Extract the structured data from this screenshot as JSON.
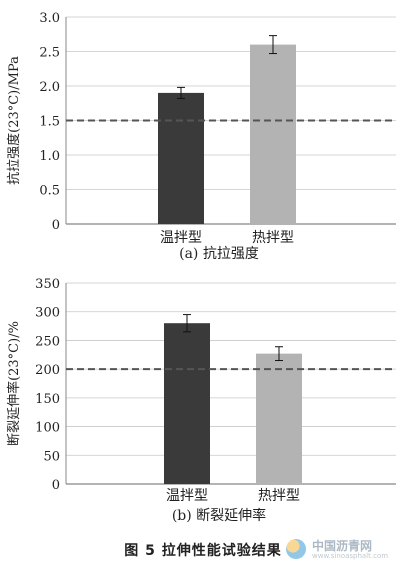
{
  "figure_caption": "图 5    拉伸性能试验结果",
  "watermark": {
    "name": "中国沥青网",
    "url": "www.sinoasphalt.com",
    "logo_icon": "asphalt-logo-icon"
  },
  "chart_data": [
    {
      "type": "bar",
      "caption": "(a) 抗拉强度",
      "categories": [
        "温拌型",
        "热拌型"
      ],
      "values": [
        1.9,
        2.6
      ],
      "error": [
        0.08,
        0.13
      ],
      "reference_line": 1.5,
      "ylabel": "抗拉强度(23°C)/MPa",
      "xlabel": "",
      "ylim": [
        0,
        3.0
      ],
      "yticks": [
        "0",
        "0.5",
        "1.0",
        "1.5",
        "2.0",
        "2.5",
        "3.0"
      ],
      "ytick_values": [
        0,
        0.5,
        1.0,
        1.5,
        2.0,
        2.5,
        3.0
      ],
      "grid": true,
      "colors": [
        "#3a3a3a",
        "#b3b3b3"
      ],
      "reference_color": "#555555"
    },
    {
      "type": "bar",
      "caption": "(b) 断裂延伸率",
      "categories": [
        "温拌型",
        "热拌型"
      ],
      "values": [
        280,
        227
      ],
      "error": [
        15,
        12
      ],
      "reference_line": 200,
      "ylabel": "断裂延伸率(23°C)/%",
      "xlabel": "",
      "ylim": [
        0,
        350
      ],
      "yticks": [
        "0",
        "50",
        "100",
        "150",
        "200",
        "250",
        "300",
        "350"
      ],
      "ytick_values": [
        0,
        50,
        100,
        150,
        200,
        250,
        300,
        350
      ],
      "grid": true,
      "colors": [
        "#3a3a3a",
        "#b3b3b3"
      ],
      "reference_color": "#555555"
    }
  ]
}
